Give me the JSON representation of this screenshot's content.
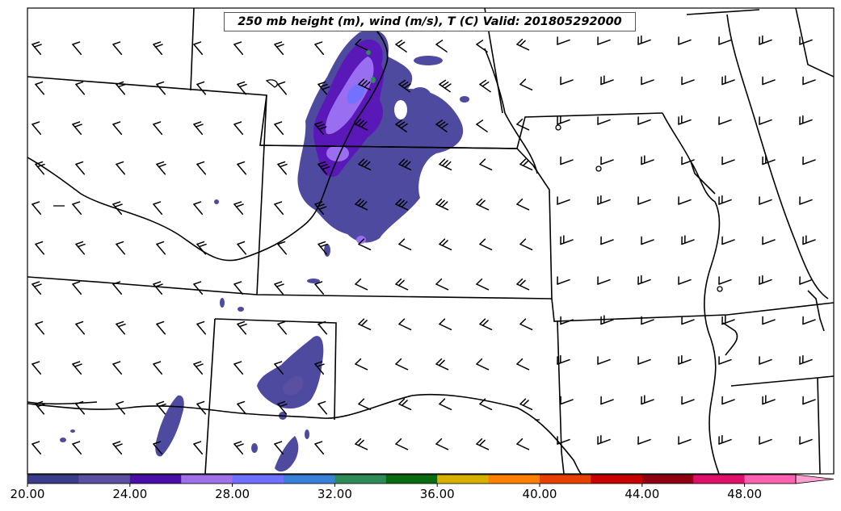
{
  "title": "250 mb height (m), wind (m/s), T (C) Valid: 201805292000",
  "colorbar": {
    "tick_labels": [
      "20.00",
      "24.00",
      "28.00",
      "32.00",
      "36.00",
      "40.00",
      "44.00",
      "48.00"
    ],
    "colors": [
      "#3c3c8c",
      "#5a4fa0",
      "#4a0fa8",
      "#a070e8",
      "#7070ff",
      "#3a7fd8",
      "#2e8b57",
      "#0a6a10",
      "#d8b000",
      "#ff8000",
      "#e84000",
      "#c80000",
      "#900010",
      "#e0106a",
      "#ff60b0",
      "#ffa0d0"
    ],
    "extend": "max"
  },
  "map": {
    "projection": "lambert-conformal",
    "region": "Central United States",
    "filled_field": "wind speed (m/s)",
    "barbs": "wind barbs",
    "boundaries": "state borders and rivers"
  }
}
